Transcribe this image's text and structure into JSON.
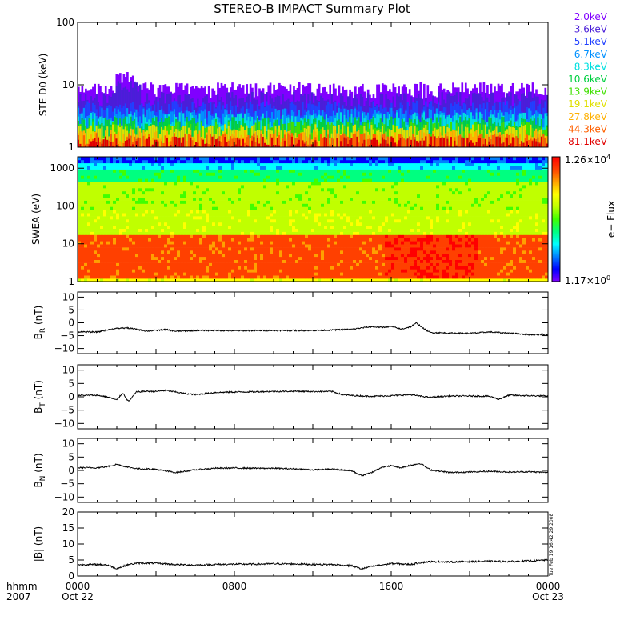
{
  "title": "STEREO-B IMPACT Summary Plot",
  "timestamp_label": "Tue Feb 19 16:42:29 2008",
  "xaxis": {
    "row1_label": "hhmm",
    "row2_label": "2007",
    "ticks": [
      {
        "hours": 0,
        "label": "0000",
        "date": "Oct 22"
      },
      {
        "hours": 8,
        "label": "0800",
        "date": ""
      },
      {
        "hours": 16,
        "label": "1600",
        "date": ""
      },
      {
        "hours": 24,
        "label": "0000",
        "date": "Oct 23"
      }
    ]
  },
  "colorbar": {
    "label": "e− Flux",
    "max_label": "1.26×10",
    "max_exp": "4",
    "min_label": "1.17×10",
    "min_exp": "0"
  },
  "chart_data": [
    {
      "type": "bar",
      "panel": "ste",
      "ylabel": "STE D0 (keV)",
      "yscale": "log",
      "ylim": [
        1,
        100
      ],
      "yticks": [
        {
          "v": 1,
          "label": "1"
        },
        {
          "v": 10,
          "label": "10"
        },
        {
          "v": 100,
          "label": "100"
        }
      ],
      "series": [
        {
          "name": "2.0keV",
          "color": "#8000ff",
          "level": 8.5
        },
        {
          "name": "3.6keV",
          "color": "#4a1ed8",
          "level": 6.0
        },
        {
          "name": "5.1keV",
          "color": "#2040ff",
          "level": 4.3
        },
        {
          "name": "6.7keV",
          "color": "#0090ff",
          "level": 3.3
        },
        {
          "name": "8.3keV",
          "color": "#00e0e0",
          "level": 2.8
        },
        {
          "name": "10.6keV",
          "color": "#00d040",
          "level": 2.4
        },
        {
          "name": "13.9keV",
          "color": "#40e000",
          "level": 2.0
        },
        {
          "name": "19.1keV",
          "color": "#e0e000",
          "level": 1.8
        },
        {
          "name": "27.8keV",
          "color": "#ffb000",
          "level": 1.5
        },
        {
          "name": "44.3keV",
          "color": "#ff6000",
          "level": 1.3
        },
        {
          "name": "81.1keV",
          "color": "#e00000",
          "level": 1.15
        }
      ]
    },
    {
      "type": "heatmap",
      "panel": "swea",
      "ylabel": "SWEA (eV)",
      "yscale": "log",
      "ylim": [
        1,
        2000
      ],
      "yticks": [
        {
          "v": 1,
          "label": "1"
        },
        {
          "v": 10,
          "label": "10"
        },
        {
          "v": 100,
          "label": "100"
        },
        {
          "v": 1000,
          "label": "1000"
        }
      ],
      "zlim": [
        1.17,
        12600
      ],
      "colormap": [
        "#8000ff",
        "#0000ff",
        "#0080ff",
        "#00ffff",
        "#00ff80",
        "#40ff00",
        "#c0ff00",
        "#ffff00",
        "#ffa000",
        "#ff4000",
        "#ff0000"
      ]
    },
    {
      "type": "line",
      "panel": "br",
      "ylabel_main": "B",
      "ylabel_sub": "R",
      "ylabel_unit": " (nT)",
      "ylim": [
        -12,
        12
      ],
      "yticks": [
        {
          "v": -10,
          "label": "−10"
        },
        {
          "v": -5,
          "label": "−5"
        },
        {
          "v": 0,
          "label": "0"
        },
        {
          "v": 5,
          "label": "5"
        },
        {
          "v": 10,
          "label": "10"
        }
      ],
      "x": [
        0,
        1,
        1.5,
        2,
        2.5,
        3,
        3.5,
        4,
        4.5,
        5,
        6,
        7,
        8,
        9,
        10,
        11,
        12,
        13,
        14,
        14.5,
        15,
        15.5,
        16,
        16.5,
        17,
        17.3,
        17.6,
        18,
        19,
        20,
        21,
        22,
        23,
        24
      ],
      "values": [
        -3.5,
        -3.6,
        -2.8,
        -2.2,
        -2.0,
        -2.5,
        -3.2,
        -3.0,
        -2.6,
        -3.3,
        -3.0,
        -3.0,
        -3.1,
        -3.0,
        -3.0,
        -3.0,
        -3.0,
        -2.8,
        -2.5,
        -2.0,
        -1.5,
        -1.8,
        -1.4,
        -2.5,
        -1.5,
        0.0,
        -2.0,
        -3.8,
        -4.0,
        -4.1,
        -3.6,
        -4.0,
        -4.6,
        -4.5
      ]
    },
    {
      "type": "line",
      "panel": "bt",
      "ylabel_main": "B",
      "ylabel_sub": "T",
      "ylabel_unit": " (nT)",
      "ylim": [
        -12,
        12
      ],
      "yticks": [
        {
          "v": -10,
          "label": "−10"
        },
        {
          "v": -5,
          "label": "−5"
        },
        {
          "v": 0,
          "label": "0"
        },
        {
          "v": 5,
          "label": "5"
        },
        {
          "v": 10,
          "label": "10"
        }
      ],
      "x": [
        0,
        1,
        1.5,
        2,
        2.3,
        2.6,
        3,
        3.5,
        4,
        4.5,
        5,
        5.5,
        6,
        7,
        8,
        9,
        10,
        11,
        12,
        13,
        13.5,
        14,
        15,
        16,
        17,
        17.5,
        18,
        19,
        20,
        21,
        21.5,
        22,
        23,
        24
      ],
      "values": [
        0.5,
        0.6,
        0.0,
        -1.2,
        1.5,
        -1.8,
        1.8,
        2.1,
        2.0,
        2.4,
        1.8,
        1.2,
        0.8,
        1.6,
        1.8,
        1.9,
        2.0,
        2.1,
        2.0,
        2.0,
        0.8,
        0.5,
        0.2,
        0.4,
        0.8,
        0.2,
        -0.2,
        0.3,
        0.3,
        0.2,
        -0.9,
        0.6,
        0.4,
        0.3
      ]
    },
    {
      "type": "line",
      "panel": "bn",
      "ylabel_main": "B",
      "ylabel_sub": "N",
      "ylabel_unit": " (nT)",
      "ylim": [
        -12,
        12
      ],
      "yticks": [
        {
          "v": -10,
          "label": "−10"
        },
        {
          "v": -5,
          "label": "−5"
        },
        {
          "v": 0,
          "label": "0"
        },
        {
          "v": 5,
          "label": "5"
        },
        {
          "v": 10,
          "label": "10"
        }
      ],
      "x": [
        0,
        1,
        1.5,
        2,
        2.5,
        3,
        4,
        5,
        6,
        7,
        8,
        9,
        10,
        11,
        12,
        13,
        14,
        14.5,
        15,
        15.5,
        16,
        16.5,
        17,
        17.5,
        18,
        19,
        20,
        21,
        22,
        23,
        24
      ],
      "values": [
        1.0,
        1.0,
        1.4,
        2.3,
        1.3,
        0.7,
        0.4,
        -0.8,
        0.2,
        0.8,
        0.9,
        0.8,
        0.8,
        0.6,
        0.2,
        0.5,
        -0.2,
        -2.0,
        -0.8,
        1.2,
        1.8,
        1.0,
        2.0,
        2.6,
        0.2,
        -0.8,
        -0.6,
        -0.3,
        -0.6,
        -0.5,
        -0.8
      ]
    },
    {
      "type": "line",
      "panel": "bmag",
      "ylabel": "|B| (nT)",
      "ylim": [
        0,
        20
      ],
      "yticks": [
        {
          "v": 0,
          "label": "0"
        },
        {
          "v": 5,
          "label": "5"
        },
        {
          "v": 10,
          "label": "10"
        },
        {
          "v": 15,
          "label": "15"
        },
        {
          "v": 20,
          "label": "20"
        }
      ],
      "x": [
        0,
        1,
        1.5,
        2,
        2.5,
        3,
        4,
        5,
        6,
        7,
        8,
        9,
        10,
        11,
        12,
        13,
        14,
        14.5,
        15,
        16,
        17,
        17.5,
        18,
        19,
        20,
        21,
        22,
        23,
        24
      ],
      "values": [
        3.5,
        3.6,
        3.5,
        2.3,
        3.4,
        4.0,
        4.0,
        3.6,
        3.4,
        3.6,
        3.7,
        3.7,
        3.8,
        3.8,
        3.6,
        3.6,
        3.2,
        2.2,
        3.0,
        3.9,
        3.6,
        4.2,
        4.5,
        4.4,
        4.5,
        4.6,
        4.5,
        4.7,
        5.0
      ]
    }
  ]
}
